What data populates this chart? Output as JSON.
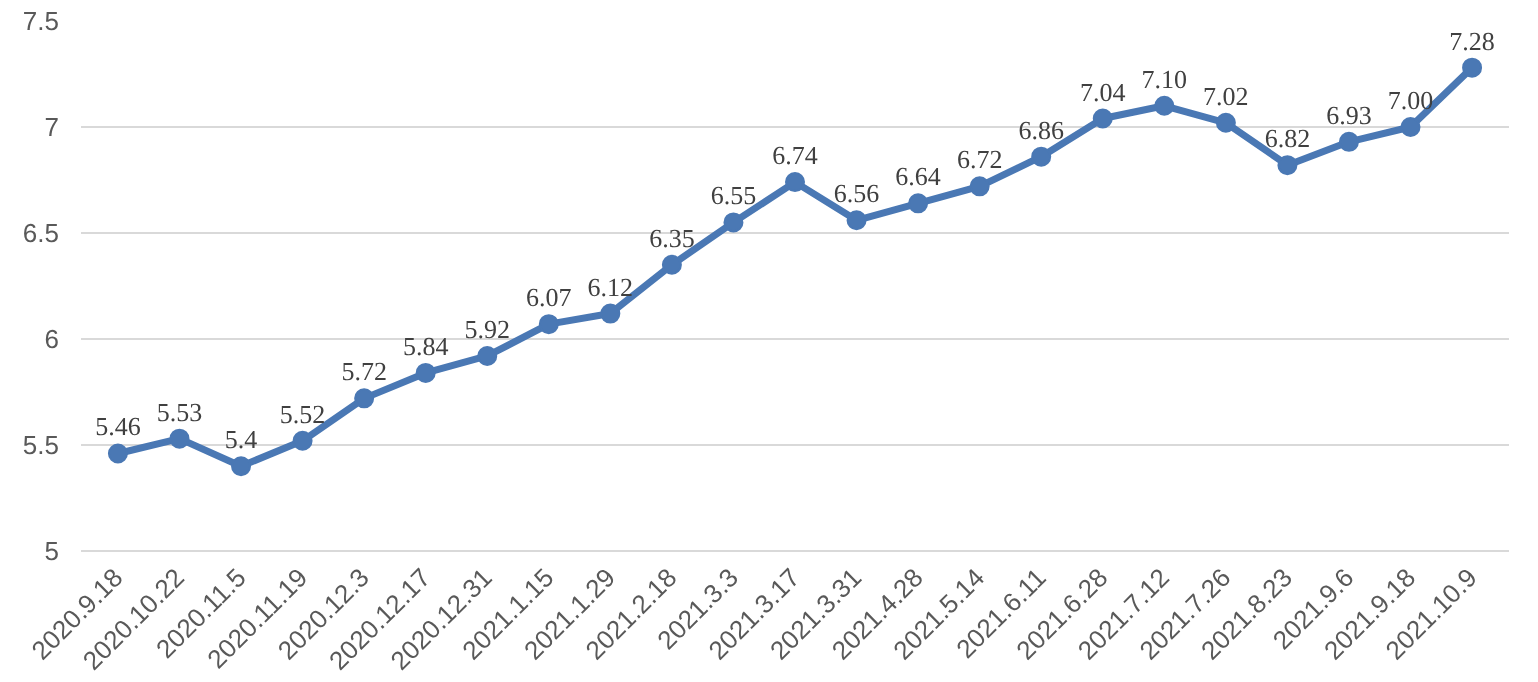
{
  "chart_data": {
    "type": "line",
    "categories": [
      "2020.9.18",
      "2020.10.22",
      "2020.11.5",
      "2020.11.19",
      "2020.12.3",
      "2020.12.17",
      "2020.12.31",
      "2021.1.15",
      "2021.1.29",
      "2021.2.18",
      "2021.3.3",
      "2021.3.17",
      "2021.3.31",
      "2021.4.28",
      "2021.5.14",
      "2021.6.11",
      "2021.6.28",
      "2021.7.12",
      "2021.7.26",
      "2021.8.23",
      "2021.9.6",
      "2021.9.18",
      "2021.10.9"
    ],
    "series": [
      {
        "color": "#4a78b4",
        "values": [
          5.46,
          5.53,
          5.4,
          5.52,
          5.72,
          5.84,
          5.92,
          6.07,
          6.12,
          6.35,
          6.55,
          6.74,
          6.56,
          6.64,
          6.72,
          6.86,
          7.04,
          7.1,
          7.02,
          6.82,
          6.93,
          7.0,
          7.28
        ],
        "value_labels": [
          "5.46",
          "5.53",
          "5.4",
          "5.52",
          "5.72",
          "5.84",
          "5.92",
          "6.07",
          "6.12",
          "6.35",
          "6.55",
          "6.74",
          "6.56",
          "6.64",
          "6.72",
          "6.86",
          "7.04",
          "7.10",
          "7.02",
          "6.82",
          "6.93",
          "7.00",
          "7.28"
        ]
      }
    ],
    "ylim": [
      5,
      7.5
    ],
    "yticks": [
      5,
      5.5,
      6,
      6.5,
      7,
      7.5
    ],
    "grid": "y",
    "marker": "circle",
    "line_style": "solid"
  }
}
